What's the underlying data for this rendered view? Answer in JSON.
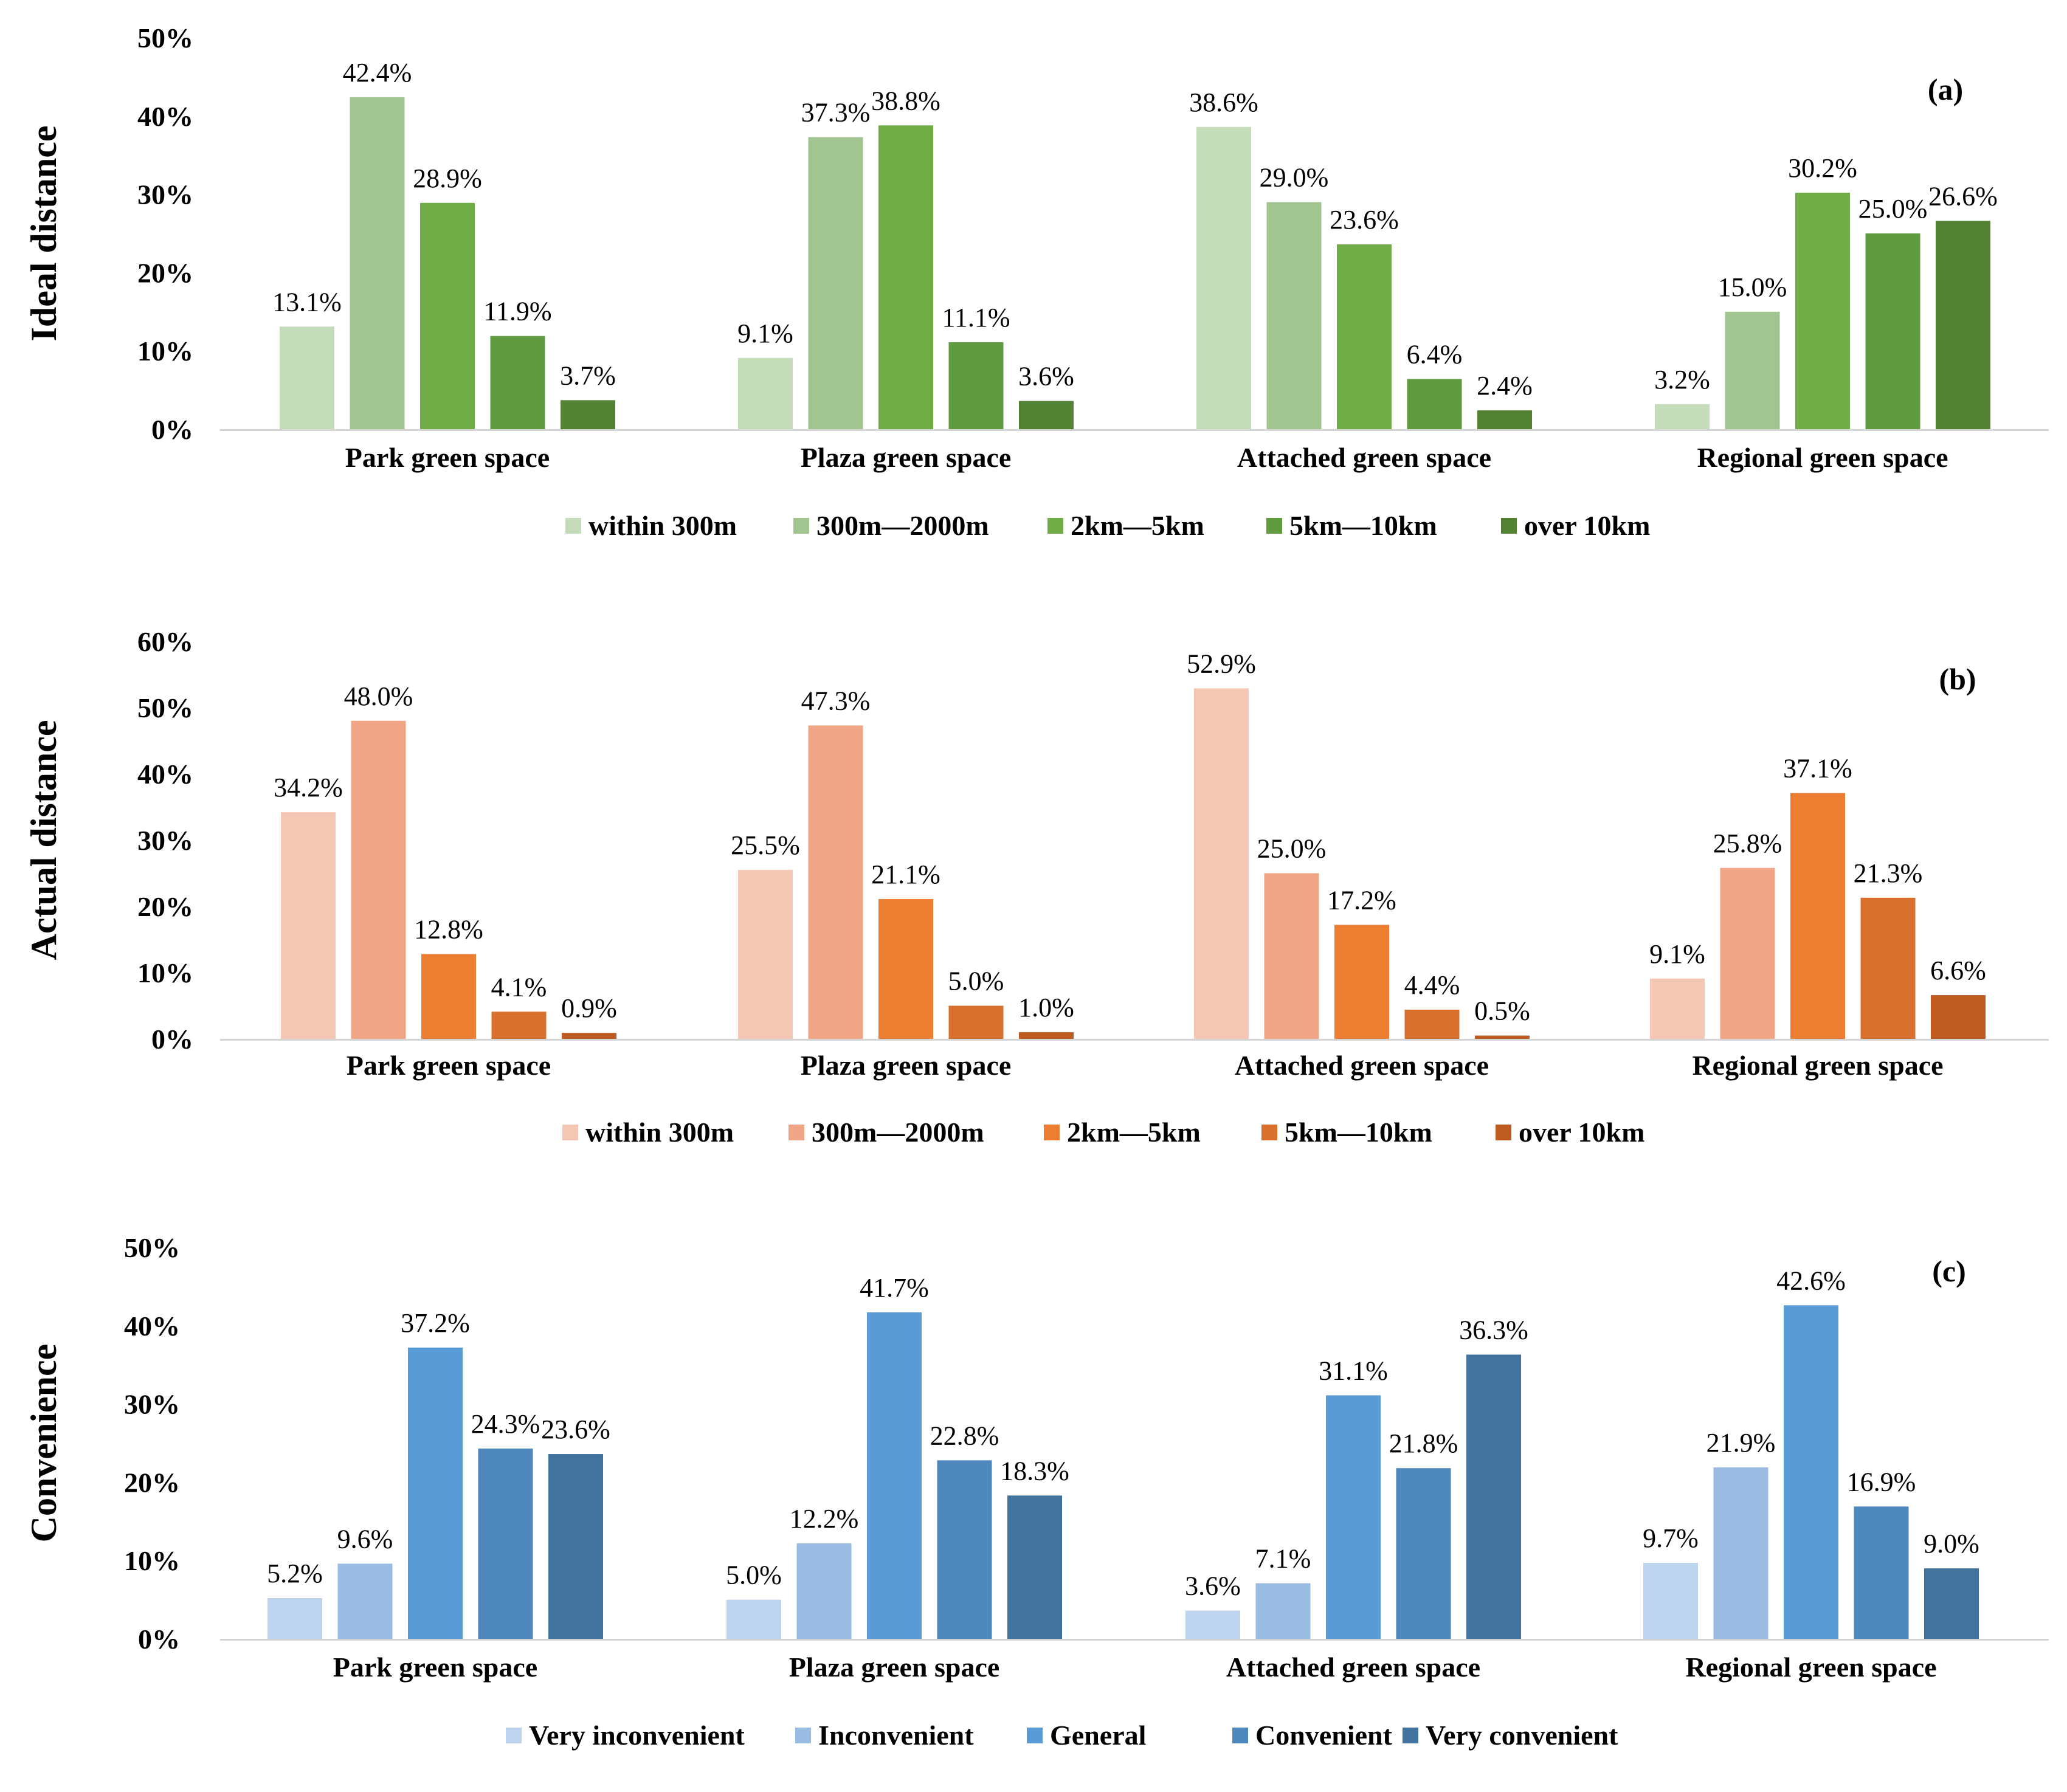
{
  "chart_data": [
    {
      "type": "bar",
      "panel": "(a)",
      "ylabel": "Ideal distance",
      "ylim": [
        0,
        0.5
      ],
      "yticks": [
        "0%",
        "10%",
        "20%",
        "30%",
        "40%",
        "50%"
      ],
      "categories": [
        "Park green space",
        "Plaza green space",
        "Attached green space",
        "Regional green space"
      ],
      "legend_position": "bottom",
      "series": [
        {
          "name": "within 300m",
          "color": "#c5dcbb",
          "values": [
            0.131,
            0.091,
            0.386,
            0.032
          ],
          "labels": [
            "13.1%",
            "9.1%",
            "38.6%",
            "3.2%"
          ]
        },
        {
          "name": "300m—2000m",
          "color": "#a2c490",
          "values": [
            0.424,
            0.373,
            0.29,
            0.15
          ],
          "labels": [
            "42.4%",
            "37.3%",
            "29.0%",
            "15.0%"
          ]
        },
        {
          "name": "2km—5km",
          "color": "#70ad47",
          "values": [
            0.289,
            0.388,
            0.236,
            0.302
          ],
          "labels": [
            "28.9%",
            "38.8%",
            "23.6%",
            "30.2%"
          ]
        },
        {
          "name": "5km—10km",
          "color": "#609c3f",
          "values": [
            0.119,
            0.111,
            0.064,
            0.25
          ],
          "labels": [
            "11.9%",
            "11.1%",
            "6.4%",
            "25.0%"
          ]
        },
        {
          "name": "over 10km",
          "color": "#548235",
          "values": [
            0.037,
            0.036,
            0.024,
            0.266
          ],
          "labels": [
            "3.7%",
            "3.6%",
            "2.4%",
            "26.6%"
          ]
        }
      ]
    },
    {
      "type": "bar",
      "panel": "(b)",
      "ylabel": "Actual distance",
      "ylim": [
        0,
        0.6
      ],
      "yticks": [
        "0%",
        "10%",
        "20%",
        "30%",
        "40%",
        "50%",
        "60%"
      ],
      "categories": [
        "Park green space",
        "Plaza green space",
        "Attached green space",
        "Regional green space"
      ],
      "legend_position": "bottom",
      "series": [
        {
          "name": "within 300m",
          "color": "#f4c7b4",
          "values": [
            0.342,
            0.255,
            0.529,
            0.091
          ],
          "labels": [
            "34.2%",
            "25.5%",
            "52.9%",
            "9.1%"
          ]
        },
        {
          "name": "300m—2000m",
          "color": "#f0a686",
          "values": [
            0.48,
            0.473,
            0.25,
            0.258
          ],
          "labels": [
            "48.0%",
            "47.3%",
            "25.0%",
            "25.8%"
          ]
        },
        {
          "name": "2km—5km",
          "color": "#ed7d31",
          "values": [
            0.128,
            0.211,
            0.172,
            0.371
          ],
          "labels": [
            "12.8%",
            "21.1%",
            "17.2%",
            "37.1%"
          ]
        },
        {
          "name": "5km—10km",
          "color": "#d86f2c",
          "values": [
            0.041,
            0.05,
            0.044,
            0.213
          ],
          "labels": [
            "4.1%",
            "5.0%",
            "4.4%",
            "21.3%"
          ]
        },
        {
          "name": "over 10km",
          "color": "#bd5b20",
          "values": [
            0.009,
            0.01,
            0.005,
            0.066
          ],
          "labels": [
            "0.9%",
            "1.0%",
            "0.5%",
            "6.6%"
          ]
        }
      ]
    },
    {
      "type": "bar",
      "panel": "(c)",
      "ylabel": "Convenience",
      "ylim": [
        0,
        0.5
      ],
      "yticks": [
        "0%",
        "10%",
        "20%",
        "30%",
        "40%",
        "50%"
      ],
      "categories": [
        "Park green space",
        "Plaza green space",
        "Attached green space",
        "Regional green space"
      ],
      "legend_position": "bottom",
      "series": [
        {
          "name": "Very inconvenient",
          "color": "#bdd3ee",
          "values": [
            0.052,
            0.05,
            0.036,
            0.097
          ],
          "labels": [
            "5.2%",
            "5.0%",
            "3.6%",
            "9.7%"
          ]
        },
        {
          "name": "Inconvenient",
          "color": "#9abbe2",
          "values": [
            0.096,
            0.122,
            0.071,
            0.219
          ],
          "labels": [
            "9.6%",
            "12.2%",
            "7.1%",
            "21.9%"
          ]
        },
        {
          "name": "General",
          "color": "#5b9bd5",
          "values": [
            0.372,
            0.417,
            0.311,
            0.426
          ],
          "labels": [
            "37.2%",
            "41.7%",
            "31.1%",
            "42.6%"
          ]
        },
        {
          "name": "Convenient",
          "color": "#4e88bc",
          "values": [
            0.243,
            0.228,
            0.218,
            0.169
          ],
          "labels": [
            "24.3%",
            "22.8%",
            "21.8%",
            "16.9%"
          ]
        },
        {
          "name": "Very convenient",
          "color": "#42739f",
          "values": [
            0.236,
            0.183,
            0.363,
            0.09
          ],
          "labels": [
            "23.6%",
            "18.3%",
            "36.3%",
            "9.0%"
          ]
        }
      ]
    }
  ]
}
